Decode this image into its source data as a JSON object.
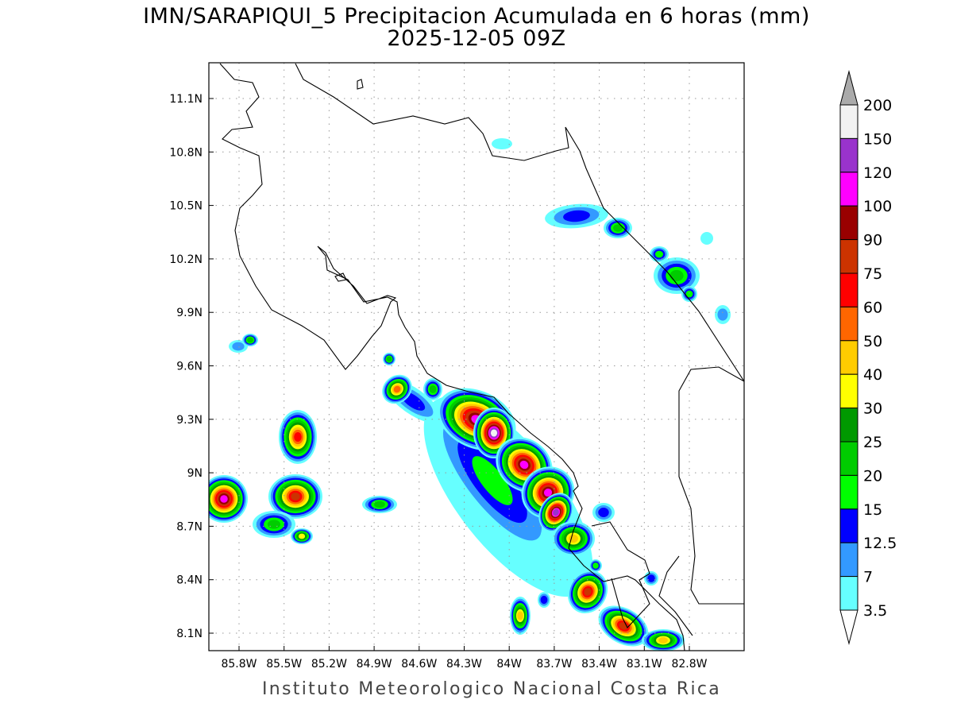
{
  "title": {
    "line1": "IMN/SARAPIQUI_5 Precipitacion Acumulada en 6 horas (mm)",
    "line2": "2025-12-05 09Z"
  },
  "credit": "Instituto Meteorologico Nacional Costa Rica",
  "map": {
    "lat_ticks": [
      "11.1N",
      "10.8N",
      "10.5N",
      "10.2N",
      "9.9N",
      "9.6N",
      "9.3N",
      "9N",
      "8.7N",
      "8.4N",
      "8.1N"
    ],
    "lon_ticks": [
      "85.8W",
      "85.5W",
      "85.2W",
      "84.9W",
      "84.6W",
      "84.3W",
      "84W",
      "83.7W",
      "83.4W",
      "83.1W",
      "82.8W"
    ],
    "lat_range": [
      8.0,
      11.3
    ],
    "lon_range": [
      -86.0,
      -82.7
    ],
    "grid": "dotted"
  },
  "legend": {
    "labels": [
      "3.5",
      "7",
      "12.5",
      "15",
      "20",
      "25",
      "30",
      "40",
      "50",
      "60",
      "75",
      "90",
      "100",
      "120",
      "150",
      "200"
    ],
    "colors": [
      "#66ffff",
      "#3399ff",
      "#0000ff",
      "#00ff00",
      "#00cc00",
      "#009900",
      "#ffff00",
      "#ffcc00",
      "#ff6600",
      "#ff0000",
      "#cc3300",
      "#990000",
      "#ff00ff",
      "#9933cc",
      "#f2f2f2"
    ],
    "over_color": "#aaaaaa",
    "under_color": "#ffffff"
  }
}
